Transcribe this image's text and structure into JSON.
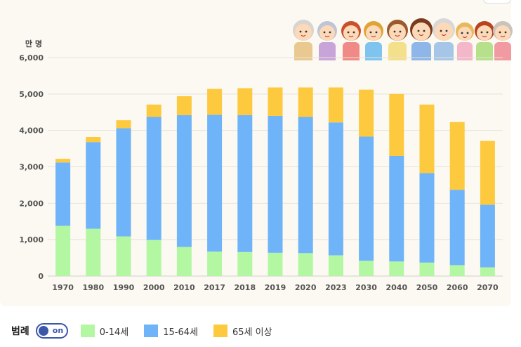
{
  "chart_data": {
    "type": "bar",
    "stacked": true,
    "y_unit_label": "만 명",
    "categories": [
      "1970",
      "1980",
      "1990",
      "2000",
      "2010",
      "2017",
      "2018",
      "2019",
      "2020",
      "2023",
      "2030",
      "2040",
      "2050",
      "2060",
      "2070"
    ],
    "series": [
      {
        "name": "0-14세",
        "color": "#b4f7a3",
        "values": [
          1380,
          1300,
          1090,
          990,
          800,
          670,
          660,
          640,
          630,
          570,
          420,
          400,
          370,
          300,
          240
        ]
      },
      {
        "name": "15-64세",
        "color": "#6fb3f8",
        "values": [
          1740,
          2380,
          2970,
          3380,
          3620,
          3760,
          3760,
          3760,
          3740,
          3650,
          3410,
          2900,
          2460,
          2070,
          1720
        ]
      },
      {
        "name": "65세 이상",
        "color": "#fdc93e",
        "values": [
          100,
          140,
          220,
          340,
          520,
          710,
          740,
          780,
          810,
          960,
          1290,
          1700,
          1880,
          1860,
          1750
        ]
      }
    ],
    "ylim": [
      0,
      6000
    ],
    "yticks": [
      0,
      1000,
      2000,
      3000,
      4000,
      5000,
      6000
    ],
    "ytick_labels": [
      "0",
      "1,000",
      "2,000",
      "3,000",
      "4,000",
      "5,000",
      "6,000"
    ],
    "grid": true,
    "legend_placement": "bottom-left"
  },
  "legend": {
    "title": "범례",
    "toggle_label": "on",
    "items": [
      {
        "label": "0-14세",
        "color": "#b4f7a3"
      },
      {
        "label": "15-64세",
        "color": "#6fb3f8"
      },
      {
        "label": "65세 이상",
        "color": "#fdc93e"
      }
    ]
  },
  "decoration": {
    "family_illustration": "family-illustration-icon"
  }
}
